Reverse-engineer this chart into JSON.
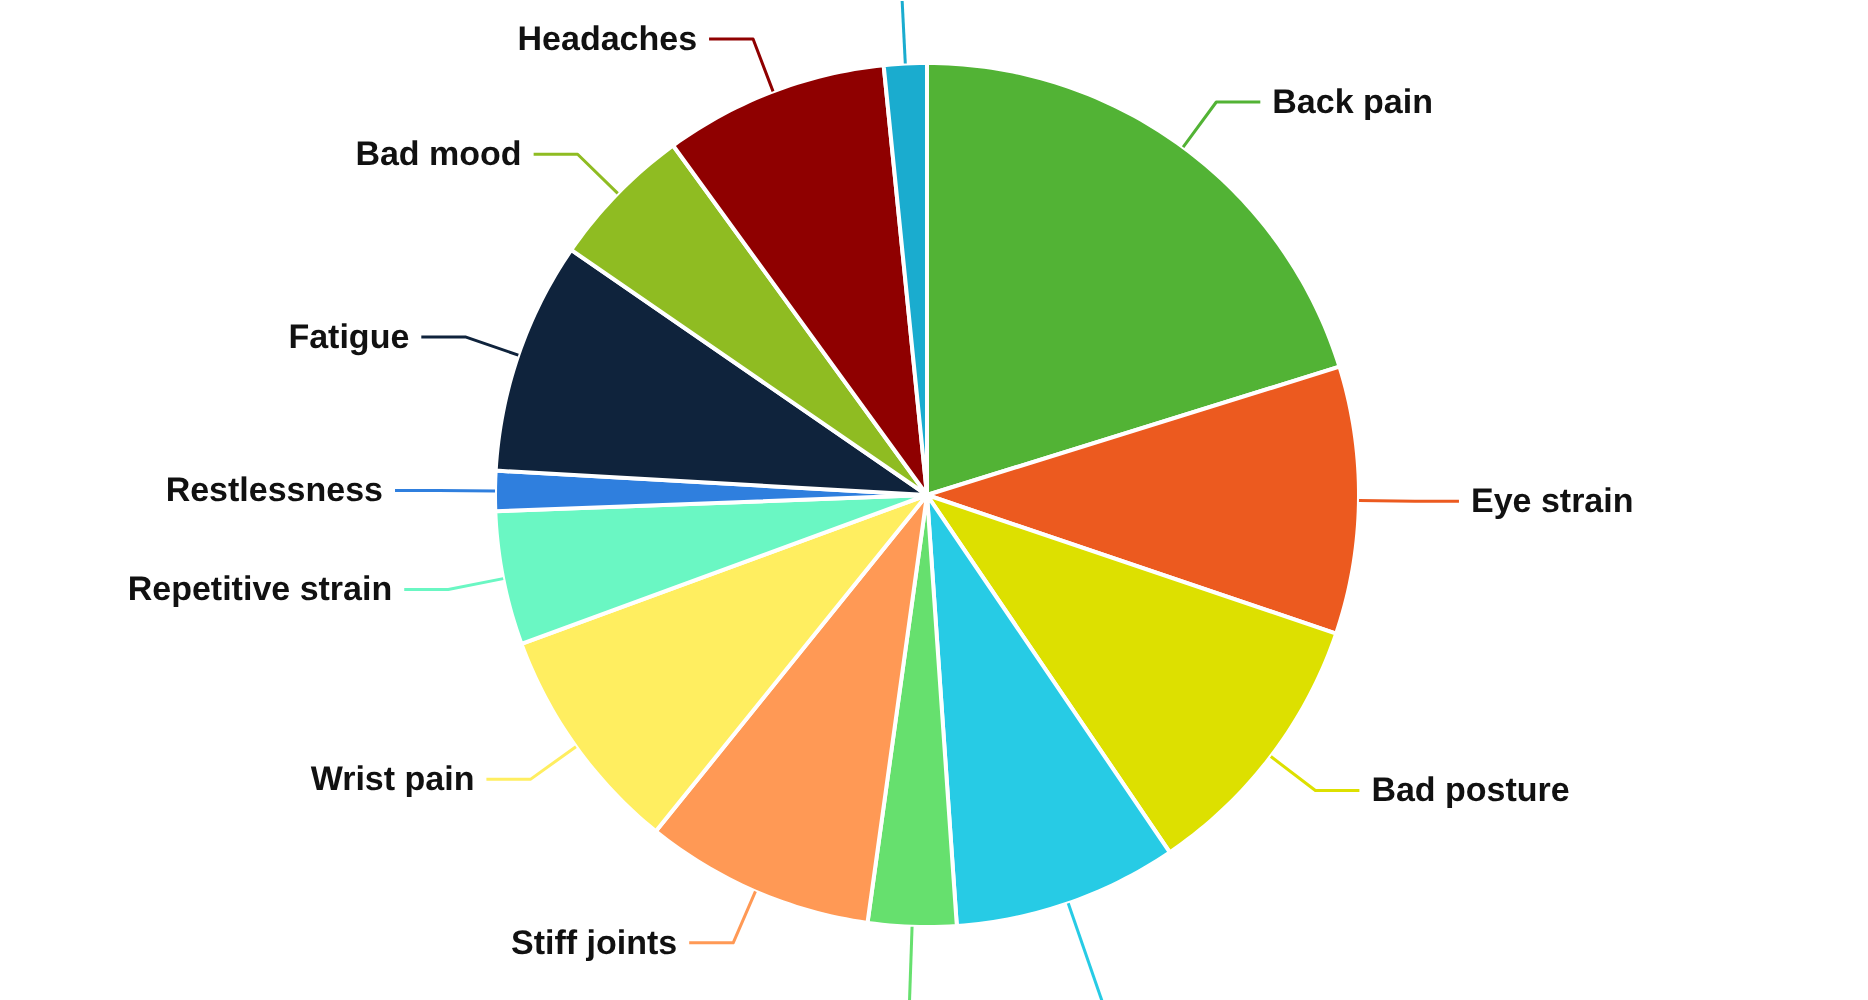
{
  "chart_data": {
    "type": "pie",
    "categories": [
      "Back pain",
      "Eye strain",
      "Bad posture",
      null,
      null,
      "Stiff joints",
      "Wrist pain",
      "Repetitive strain",
      "Restlessness",
      "Fatigue",
      "Bad mood",
      "Headaches",
      null
    ],
    "values": [
      20.2,
      10,
      10.3,
      8.4,
      3.3,
      8.6,
      8.6,
      5,
      1.5,
      8.7,
      5.4,
      8.4,
      1.6
    ],
    "colors": [
      "#52b335",
      "#ec5a1f",
      "#dde000",
      "#27cbe5",
      "#66e06e",
      "#ff9955",
      "#ffee60",
      "#6af7c3",
      "#2f7fde",
      "#0f233c",
      "#8fbc22",
      "#8f0000",
      "#1aaccf"
    ]
  }
}
